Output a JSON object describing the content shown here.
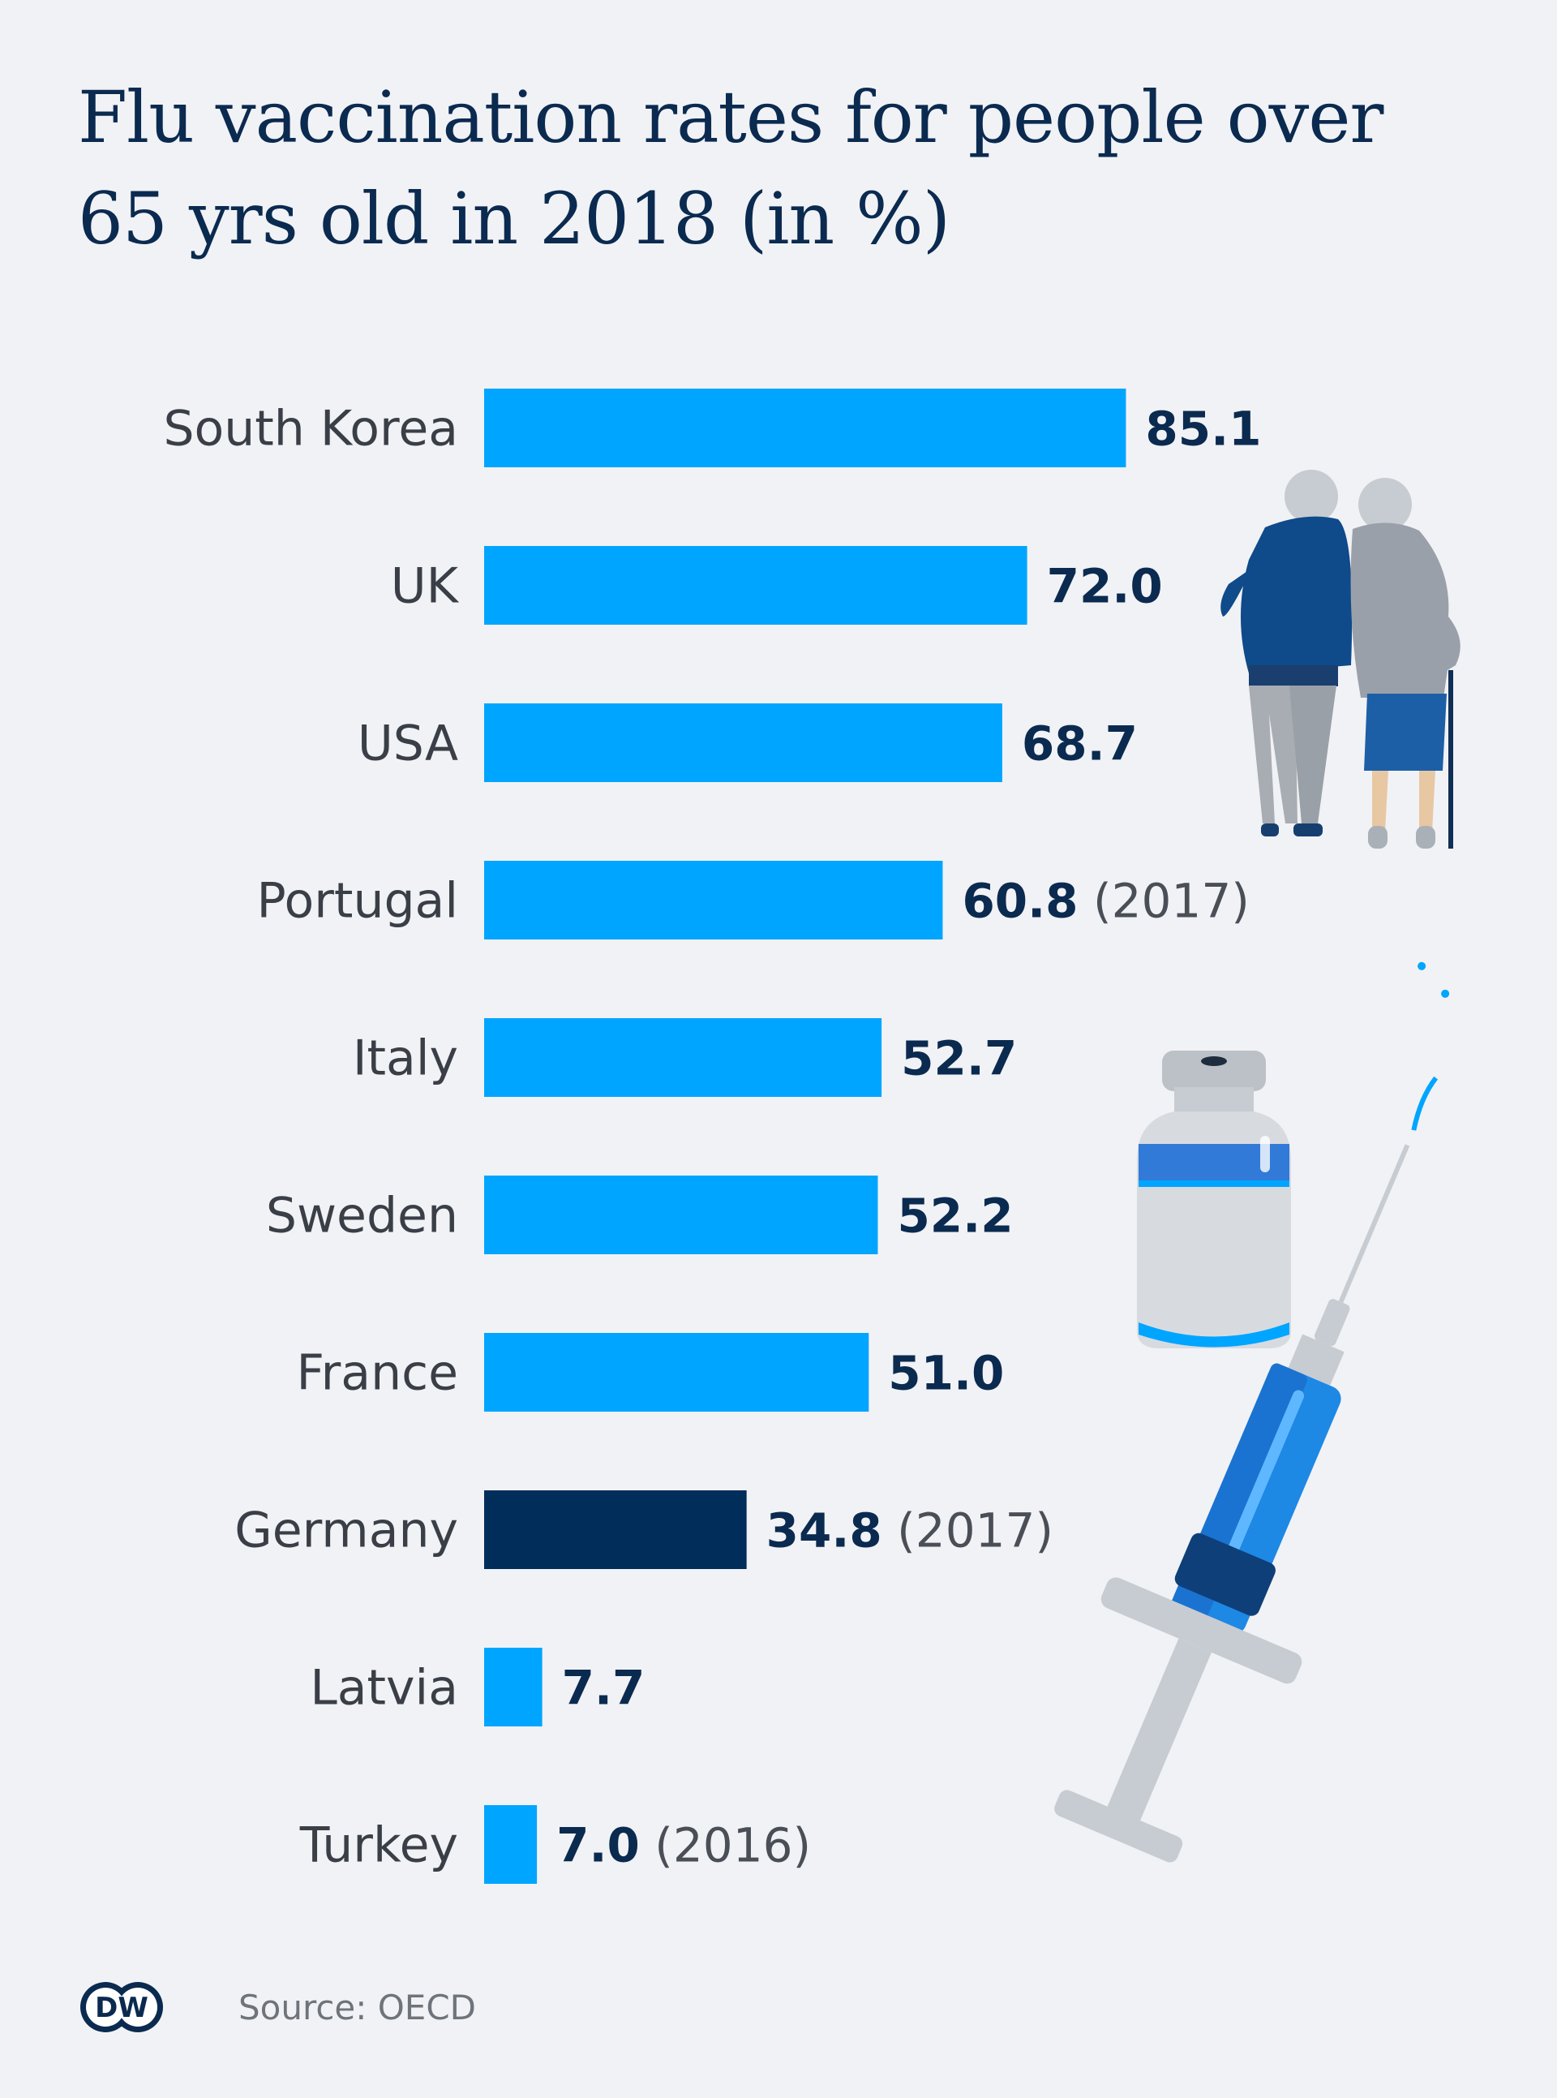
{
  "title": "Flu vaccination rates for people over 65 yrs old in 2018 (in %)",
  "source": "Source: OECD",
  "logo_text": "DW",
  "colors": {
    "background": "#f1f2f5",
    "bar": "#00a5ff",
    "bar_highlight": "#002d5a",
    "title": "#0b2a50",
    "value_text": "#0b2a50",
    "category_text": "#3a3f47"
  },
  "illustrations": [
    "elderly-couple-illustration",
    "vaccine-vial-illustration",
    "syringe-illustration"
  ],
  "chart_data": {
    "type": "bar",
    "orientation": "horizontal",
    "title": "Flu vaccination rates for people over 65 yrs old in 2018 (in %)",
    "categories": [
      "South Korea",
      "UK",
      "USA",
      "Portugal",
      "Italy",
      "Sweden",
      "France",
      "Germany",
      "Latvia",
      "Turkey"
    ],
    "values": [
      85.1,
      72.0,
      68.7,
      60.8,
      52.7,
      52.2,
      51.0,
      34.8,
      7.7,
      7.0
    ],
    "value_labels": [
      "85.1",
      "72.0",
      "68.7",
      "60.8",
      "52.7",
      "52.2",
      "51.0",
      "34.8",
      "7.7",
      "7.0"
    ],
    "notes": [
      "",
      "",
      "",
      "(2017)",
      "",
      "",
      "",
      "(2017)",
      "",
      "(2016)"
    ],
    "highlight": "Germany",
    "xlim": [
      0,
      100
    ],
    "grid": false,
    "legend": "none"
  }
}
